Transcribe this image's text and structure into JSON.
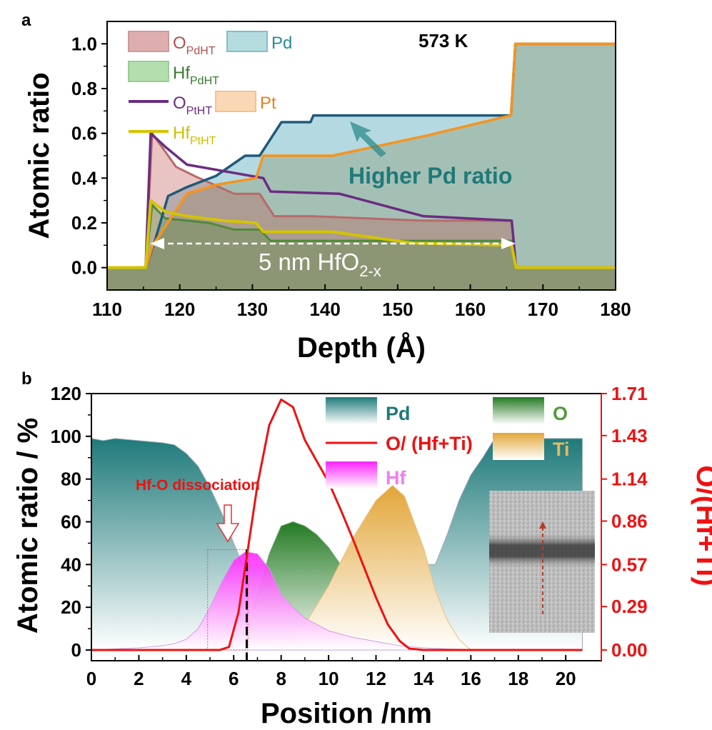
{
  "chart_data": [
    {
      "panel": "a",
      "type": "area",
      "temperature_label": "573 K",
      "xlabel": "Depth (Å)",
      "ylabel": "Atomic ratio",
      "xlim": [
        110,
        180
      ],
      "ylim": [
        -0.1,
        1.1
      ],
      "xticks": [
        "110",
        "120",
        "130",
        "140",
        "150",
        "160",
        "170",
        "180"
      ],
      "yticks": [
        "0.0",
        "0.2",
        "0.4",
        "0.6",
        "0.8",
        "1.0"
      ],
      "series": [
        {
          "name": "Pt",
          "style": "area",
          "color": "#f7931e",
          "x": [
            110,
            115.3,
            116.3,
            121,
            125,
            130.5,
            131.5,
            141,
            154,
            165.6,
            166.2,
            180
          ],
          "y": [
            0,
            0,
            0.1,
            0.33,
            0.37,
            0.4,
            0.5,
            0.5,
            0.59,
            0.68,
            1.0,
            1.0
          ]
        },
        {
          "name": "Pd",
          "style": "area",
          "color": "#2b7a99",
          "x": [
            110,
            115.3,
            116.4,
            118.4,
            121,
            125,
            129,
            131,
            134,
            138,
            138.4,
            153.8,
            165.6,
            166.2,
            180
          ],
          "y": [
            0,
            0,
            0.1,
            0.32,
            0.36,
            0.41,
            0.5,
            0.5,
            0.65,
            0.65,
            0.68,
            0.68,
            0.68,
            1.0,
            1.0
          ]
        },
        {
          "name": "O_PdHT",
          "style": "area",
          "color": "#c0504d",
          "x": [
            110,
            115.3,
            116.2,
            119.5,
            122,
            127.5,
            131,
            133,
            138,
            153.5,
            165.7,
            166.3,
            180
          ],
          "y": [
            0,
            0,
            0.6,
            0.45,
            0.41,
            0.33,
            0.33,
            0.23,
            0.23,
            0.21,
            0.21,
            0,
            0
          ]
        },
        {
          "name": "Hf_PdHT",
          "style": "area",
          "color": "#4f9a3a",
          "x": [
            110,
            115.3,
            116.2,
            118,
            124,
            127.5,
            131,
            132.5,
            165.7,
            166.3,
            180
          ],
          "y": [
            0,
            0,
            0.28,
            0.22,
            0.2,
            0.17,
            0.17,
            0.12,
            0.12,
            0,
            0
          ]
        },
        {
          "name": "O_PtHT",
          "style": "line",
          "color": "#6b2d80",
          "x": [
            110,
            115.3,
            116.0,
            118,
            121,
            131.5,
            132.5,
            142,
            153.5,
            165.7,
            166.3,
            180
          ],
          "y": [
            0,
            0,
            0.6,
            0.54,
            0.46,
            0.4,
            0.34,
            0.33,
            0.23,
            0.21,
            0,
            0
          ]
        },
        {
          "name": "Hf_PtHT",
          "style": "line",
          "color": "#d4c400",
          "x": [
            110,
            115.3,
            116.0,
            118,
            121,
            126,
            130.5,
            131.5,
            141,
            152,
            165.7,
            166.3,
            180
          ],
          "y": [
            0,
            0,
            0.3,
            0.25,
            0.23,
            0.21,
            0.2,
            0.16,
            0.16,
            0.11,
            0.1,
            0,
            0
          ]
        }
      ],
      "legend": [
        {
          "key": "O_PdHT",
          "base": "O",
          "sub": "PdHT",
          "kind": "area"
        },
        {
          "key": "Pd",
          "base": "Pd",
          "sub": "",
          "kind": "area"
        },
        {
          "key": "Hf_PdHT",
          "base": "Hf",
          "sub": "PdHT",
          "kind": "area"
        },
        {
          "key": "O_PtHT",
          "base": "O",
          "sub": "PtHT",
          "kind": "line"
        },
        {
          "key": "Pt",
          "base": "Pt",
          "sub": "",
          "kind": "area"
        },
        {
          "key": "Hf_PtHT",
          "base": "Hf",
          "sub": "PtHT",
          "kind": "line"
        }
      ],
      "annotations": {
        "higher_pd": "Higher Pd ratio",
        "thickness_main": "5 nm HfO",
        "thickness_sub": "2-x"
      }
    },
    {
      "panel": "b",
      "type": "area",
      "xlabel": "Position /nm",
      "ylabel_left": "Atomic ratio / %",
      "ylabel_right": "O/(Hf+Ti)",
      "xlim": [
        0,
        21.5
      ],
      "ylim_left": [
        -5,
        120
      ],
      "ylim_right": [
        0,
        1.71
      ],
      "xticks": [
        "0",
        "2",
        "4",
        "6",
        "8",
        "10",
        "12",
        "14",
        "16",
        "18",
        "20"
      ],
      "yticks_left": [
        "0",
        "20",
        "40",
        "60",
        "80",
        "100",
        "120"
      ],
      "yticks_right": [
        "0.00",
        "0.29",
        "0.57",
        "0.86",
        "1.14",
        "1.43",
        "1.71"
      ],
      "series": [
        {
          "name": "Pd",
          "style": "area",
          "color": "#1f7a7a",
          "x": [
            0,
            0.5,
            1,
            2,
            3,
            3.5,
            4,
            4.5,
            5,
            5.5,
            6,
            6.3,
            6.5,
            14.5,
            15,
            15.5,
            16,
            16.5,
            17,
            20.7
          ],
          "y": [
            99,
            98,
            99,
            98,
            97,
            96,
            92,
            86,
            76,
            64,
            50,
            42,
            40,
            40,
            54,
            70,
            82,
            90,
            99,
            99
          ]
        },
        {
          "name": "O",
          "style": "area",
          "color": "#2e7d32",
          "x": [
            6.5,
            7,
            7.5,
            8,
            8.5,
            9,
            9.5,
            10,
            10.5,
            11
          ],
          "y": [
            5,
            25,
            45,
            58,
            60,
            58,
            54,
            48,
            40,
            30
          ]
        },
        {
          "name": "Ti",
          "style": "area",
          "color": "#e8a63a",
          "x": [
            8,
            9,
            10,
            11,
            12,
            12.7,
            13.2,
            14,
            14.5,
            15,
            15.5,
            16
          ],
          "y": [
            0,
            12,
            30,
            52,
            70,
            77,
            72,
            48,
            28,
            14,
            5,
            0
          ]
        },
        {
          "name": "Hf",
          "style": "area",
          "color": "#ff33ff",
          "x": [
            0,
            1,
            2,
            3,
            3.5,
            4,
            4.5,
            5,
            5.5,
            6,
            6.5,
            7,
            7.5,
            8,
            8.5,
            9,
            9.5,
            10,
            11,
            12,
            13,
            14,
            15,
            16,
            17,
            20.7
          ],
          "y": [
            0,
            0.5,
            1,
            2,
            3,
            5,
            10,
            20,
            32,
            42,
            46,
            45,
            38,
            26,
            20,
            15,
            12,
            9,
            6,
            4,
            2,
            1,
            0.5,
            0.3,
            0.2,
            0
          ]
        },
        {
          "name": "O/ (Hf+Ti)",
          "style": "line",
          "axis": "right",
          "color": "#ee1111",
          "x": [
            0,
            5.4,
            5.8,
            6.2,
            7,
            7.5,
            8,
            8.5,
            9,
            9.5,
            10,
            10.5,
            11,
            11.5,
            12,
            12.5,
            13,
            13.4,
            14,
            20.7
          ],
          "y": [
            0,
            0,
            0.02,
            0.25,
            1.1,
            1.5,
            1.67,
            1.62,
            1.4,
            1.26,
            1.12,
            0.94,
            0.75,
            0.55,
            0.35,
            0.17,
            0.06,
            0.01,
            0,
            0
          ]
        }
      ],
      "legend": [
        {
          "key": "Pd",
          "label": "Pd",
          "kind": "area",
          "color": "#1f7a7a",
          "text_color": "#1f7a7a"
        },
        {
          "key": "O",
          "label": "O",
          "kind": "area",
          "color": "#2e7d32",
          "text_color": "#4f9a3a"
        },
        {
          "key": "O/ (Hf+Ti)",
          "label": "O/ (Hf+Ti)",
          "kind": "line",
          "color": "#ee1111",
          "text_color": "#ee1111"
        },
        {
          "key": "Ti",
          "label": "Ti",
          "kind": "area",
          "color": "#e8a63a",
          "text_color": "#e8b860"
        },
        {
          "key": "Hf",
          "label": "Hf",
          "kind": "area",
          "color": "#ff33ff",
          "text_color": "#f07ef0"
        }
      ],
      "annotations": {
        "dissociation": "Hf-O dissociation",
        "dashed_line_x": 6.55,
        "highlight_x": [
          4.9,
          6.6
        ],
        "highlight_y": [
          0,
          47
        ]
      }
    }
  ]
}
